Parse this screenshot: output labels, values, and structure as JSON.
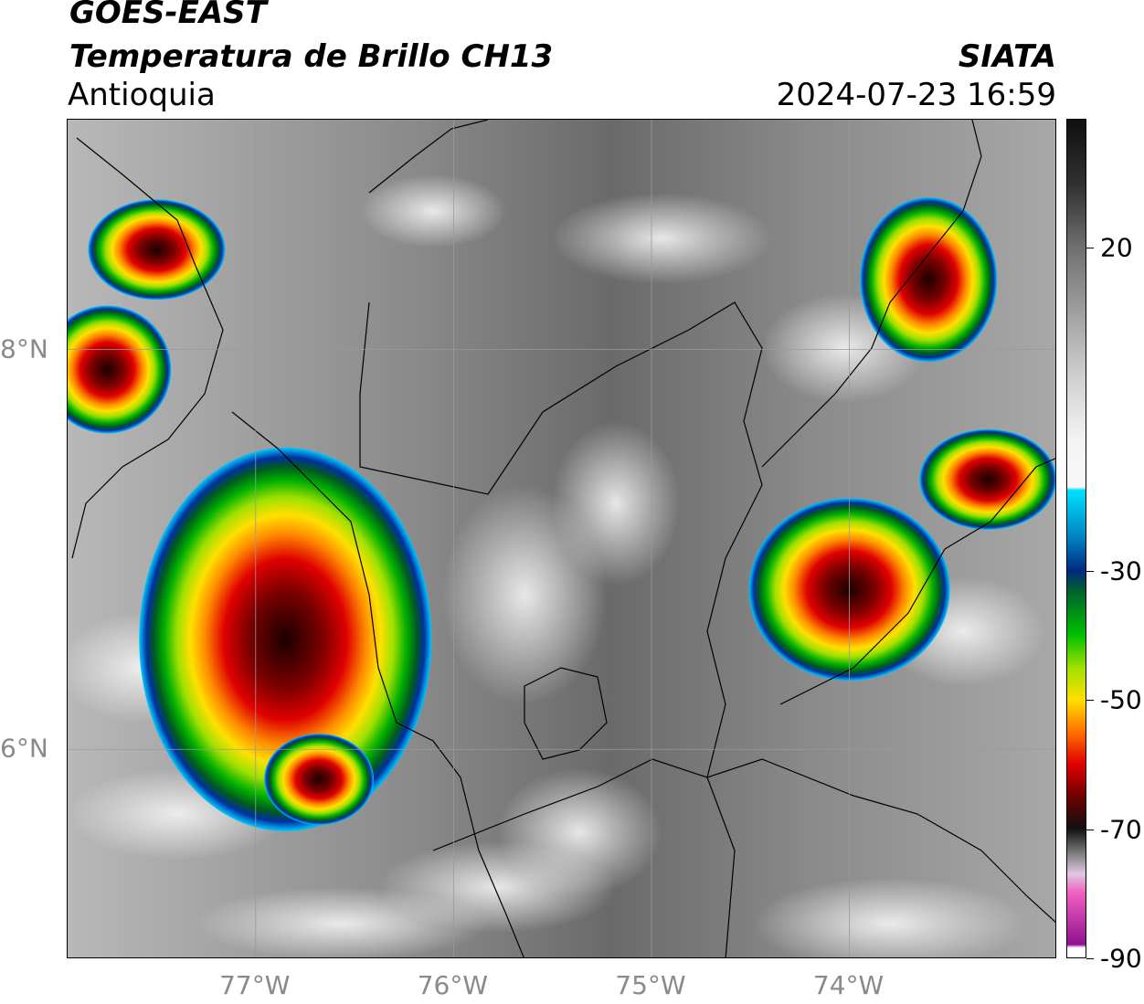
{
  "header": {
    "title_line1": "GOES-EAST",
    "title_line2": "Temperatura de Brillo CH13",
    "region": "Antioquia",
    "organization": "SIATA",
    "timestamp": "2024-07-23 16:59"
  },
  "map": {
    "lon_range": [
      -77.95,
      -72.95
    ],
    "lat_range": [
      4.95,
      9.15
    ],
    "x_ticks": [
      {
        "value": -77,
        "label": "77°W"
      },
      {
        "value": -76,
        "label": "76°W"
      },
      {
        "value": -75,
        "label": "75°W"
      },
      {
        "value": -74,
        "label": "74°W"
      }
    ],
    "y_ticks": [
      {
        "value": 8,
        "label": "8°N"
      },
      {
        "value": 6,
        "label": "6°N"
      }
    ],
    "storm_cells": [
      {
        "name": "western-large-complex",
        "lon": -76.85,
        "lat": 6.55,
        "peak_temp": -75
      },
      {
        "name": "southwest-cell",
        "lon": -76.68,
        "lat": 5.85,
        "peak_temp": -65
      },
      {
        "name": "northwest-cell",
        "lon": -77.5,
        "lat": 8.5,
        "peak_temp": -72
      },
      {
        "name": "west-coast-cell",
        "lon": -77.75,
        "lat": 7.9,
        "peak_temp": -70
      },
      {
        "name": "eastern-complex",
        "lon": -74.0,
        "lat": 6.8,
        "peak_temp": -70
      },
      {
        "name": "northeast-cell",
        "lon": -73.6,
        "lat": 8.35,
        "peak_temp": -70
      },
      {
        "name": "east-cell",
        "lon": -73.3,
        "lat": 7.35,
        "peak_temp": -62
      }
    ]
  },
  "colorbar": {
    "label_unit": "",
    "range": [
      -90,
      40
    ],
    "ticks": [
      {
        "value": 20,
        "label": "20"
      },
      {
        "value": -30,
        "label": "-30"
      },
      {
        "value": -50,
        "label": "-50"
      },
      {
        "value": -70,
        "label": "-70"
      },
      {
        "value": -90,
        "label": "-90"
      }
    ]
  }
}
